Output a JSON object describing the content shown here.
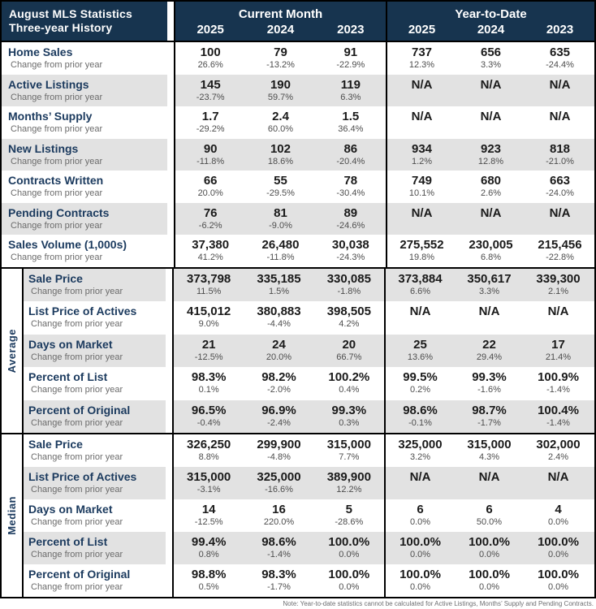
{
  "header": {
    "title_line1": "August MLS Statistics",
    "title_line2": "Three-year History",
    "group1": "Current Month",
    "group2": "Year-to-Date",
    "years": [
      "2025",
      "2024",
      "2023",
      "2025",
      "2024",
      "2023"
    ]
  },
  "change_label": "Change from prior year",
  "sections": [
    {
      "name": "",
      "rows": [
        {
          "label": "Home Sales",
          "values": [
            "100",
            "79",
            "91",
            "737",
            "656",
            "635"
          ],
          "changes": [
            "26.6%",
            "-13.2%",
            "-22.9%",
            "12.3%",
            "3.3%",
            "-24.4%"
          ]
        },
        {
          "label": "Active Listings",
          "values": [
            "145",
            "190",
            "119",
            "N/A",
            "N/A",
            "N/A"
          ],
          "changes": [
            "-23.7%",
            "59.7%",
            "6.3%",
            "",
            "",
            ""
          ]
        },
        {
          "label": "Months’ Supply",
          "values": [
            "1.7",
            "2.4",
            "1.5",
            "N/A",
            "N/A",
            "N/A"
          ],
          "changes": [
            "-29.2%",
            "60.0%",
            "36.4%",
            "",
            "",
            ""
          ]
        },
        {
          "label": "New Listings",
          "values": [
            "90",
            "102",
            "86",
            "934",
            "923",
            "818"
          ],
          "changes": [
            "-11.8%",
            "18.6%",
            "-20.4%",
            "1.2%",
            "12.8%",
            "-21.0%"
          ]
        },
        {
          "label": "Contracts Written",
          "values": [
            "66",
            "55",
            "78",
            "749",
            "680",
            "663"
          ],
          "changes": [
            "20.0%",
            "-29.5%",
            "-30.4%",
            "10.1%",
            "2.6%",
            "-24.0%"
          ]
        },
        {
          "label": "Pending Contracts",
          "values": [
            "76",
            "81",
            "89",
            "N/A",
            "N/A",
            "N/A"
          ],
          "changes": [
            "-6.2%",
            "-9.0%",
            "-24.6%",
            "",
            "",
            ""
          ]
        },
        {
          "label": "Sales Volume (1,000s)",
          "values": [
            "37,380",
            "26,480",
            "30,038",
            "275,552",
            "230,005",
            "215,456"
          ],
          "changes": [
            "41.2%",
            "-11.8%",
            "-24.3%",
            "19.8%",
            "6.8%",
            "-22.8%"
          ]
        }
      ]
    },
    {
      "name": "Average",
      "rows": [
        {
          "label": "Sale Price",
          "values": [
            "373,798",
            "335,185",
            "330,085",
            "373,884",
            "350,617",
            "339,300"
          ],
          "changes": [
            "11.5%",
            "1.5%",
            "-1.8%",
            "6.6%",
            "3.3%",
            "2.1%"
          ]
        },
        {
          "label": "List Price of Actives",
          "values": [
            "415,012",
            "380,883",
            "398,505",
            "N/A",
            "N/A",
            "N/A"
          ],
          "changes": [
            "9.0%",
            "-4.4%",
            "4.2%",
            "",
            "",
            ""
          ]
        },
        {
          "label": "Days on Market",
          "values": [
            "21",
            "24",
            "20",
            "25",
            "22",
            "17"
          ],
          "changes": [
            "-12.5%",
            "20.0%",
            "66.7%",
            "13.6%",
            "29.4%",
            "21.4%"
          ]
        },
        {
          "label": "Percent of List",
          "values": [
            "98.3%",
            "98.2%",
            "100.2%",
            "99.5%",
            "99.3%",
            "100.9%"
          ],
          "changes": [
            "0.1%",
            "-2.0%",
            "0.4%",
            "0.2%",
            "-1.6%",
            "-1.4%"
          ]
        },
        {
          "label": "Percent of Original",
          "values": [
            "96.5%",
            "96.9%",
            "99.3%",
            "98.6%",
            "98.7%",
            "100.4%"
          ],
          "changes": [
            "-0.4%",
            "-2.4%",
            "0.3%",
            "-0.1%",
            "-1.7%",
            "-1.4%"
          ]
        }
      ]
    },
    {
      "name": "Median",
      "rows": [
        {
          "label": "Sale Price",
          "values": [
            "326,250",
            "299,900",
            "315,000",
            "325,000",
            "315,000",
            "302,000"
          ],
          "changes": [
            "8.8%",
            "-4.8%",
            "7.7%",
            "3.2%",
            "4.3%",
            "2.4%"
          ]
        },
        {
          "label": "List Price of Actives",
          "values": [
            "315,000",
            "325,000",
            "389,900",
            "N/A",
            "N/A",
            "N/A"
          ],
          "changes": [
            "-3.1%",
            "-16.6%",
            "12.2%",
            "",
            "",
            ""
          ]
        },
        {
          "label": "Days on Market",
          "values": [
            "14",
            "16",
            "5",
            "6",
            "6",
            "4"
          ],
          "changes": [
            "-12.5%",
            "220.0%",
            "-28.6%",
            "0.0%",
            "50.0%",
            "0.0%"
          ]
        },
        {
          "label": "Percent of List",
          "values": [
            "99.4%",
            "98.6%",
            "100.0%",
            "100.0%",
            "100.0%",
            "100.0%"
          ],
          "changes": [
            "0.8%",
            "-1.4%",
            "0.0%",
            "0.0%",
            "0.0%",
            "0.0%"
          ]
        },
        {
          "label": "Percent of Original",
          "values": [
            "98.8%",
            "98.3%",
            "100.0%",
            "100.0%",
            "100.0%",
            "100.0%"
          ],
          "changes": [
            "0.5%",
            "-1.7%",
            "0.0%",
            "0.0%",
            "0.0%",
            "0.0%"
          ]
        }
      ]
    }
  ],
  "note": "Note: Year-to-date statistics cannot be calculated for Active Listings, Months’ Supply and Pending Contracts.",
  "colors": {
    "navy": "#17344f",
    "stripe": "#e2e2e2",
    "label_navy": "#1b3a5e"
  }
}
